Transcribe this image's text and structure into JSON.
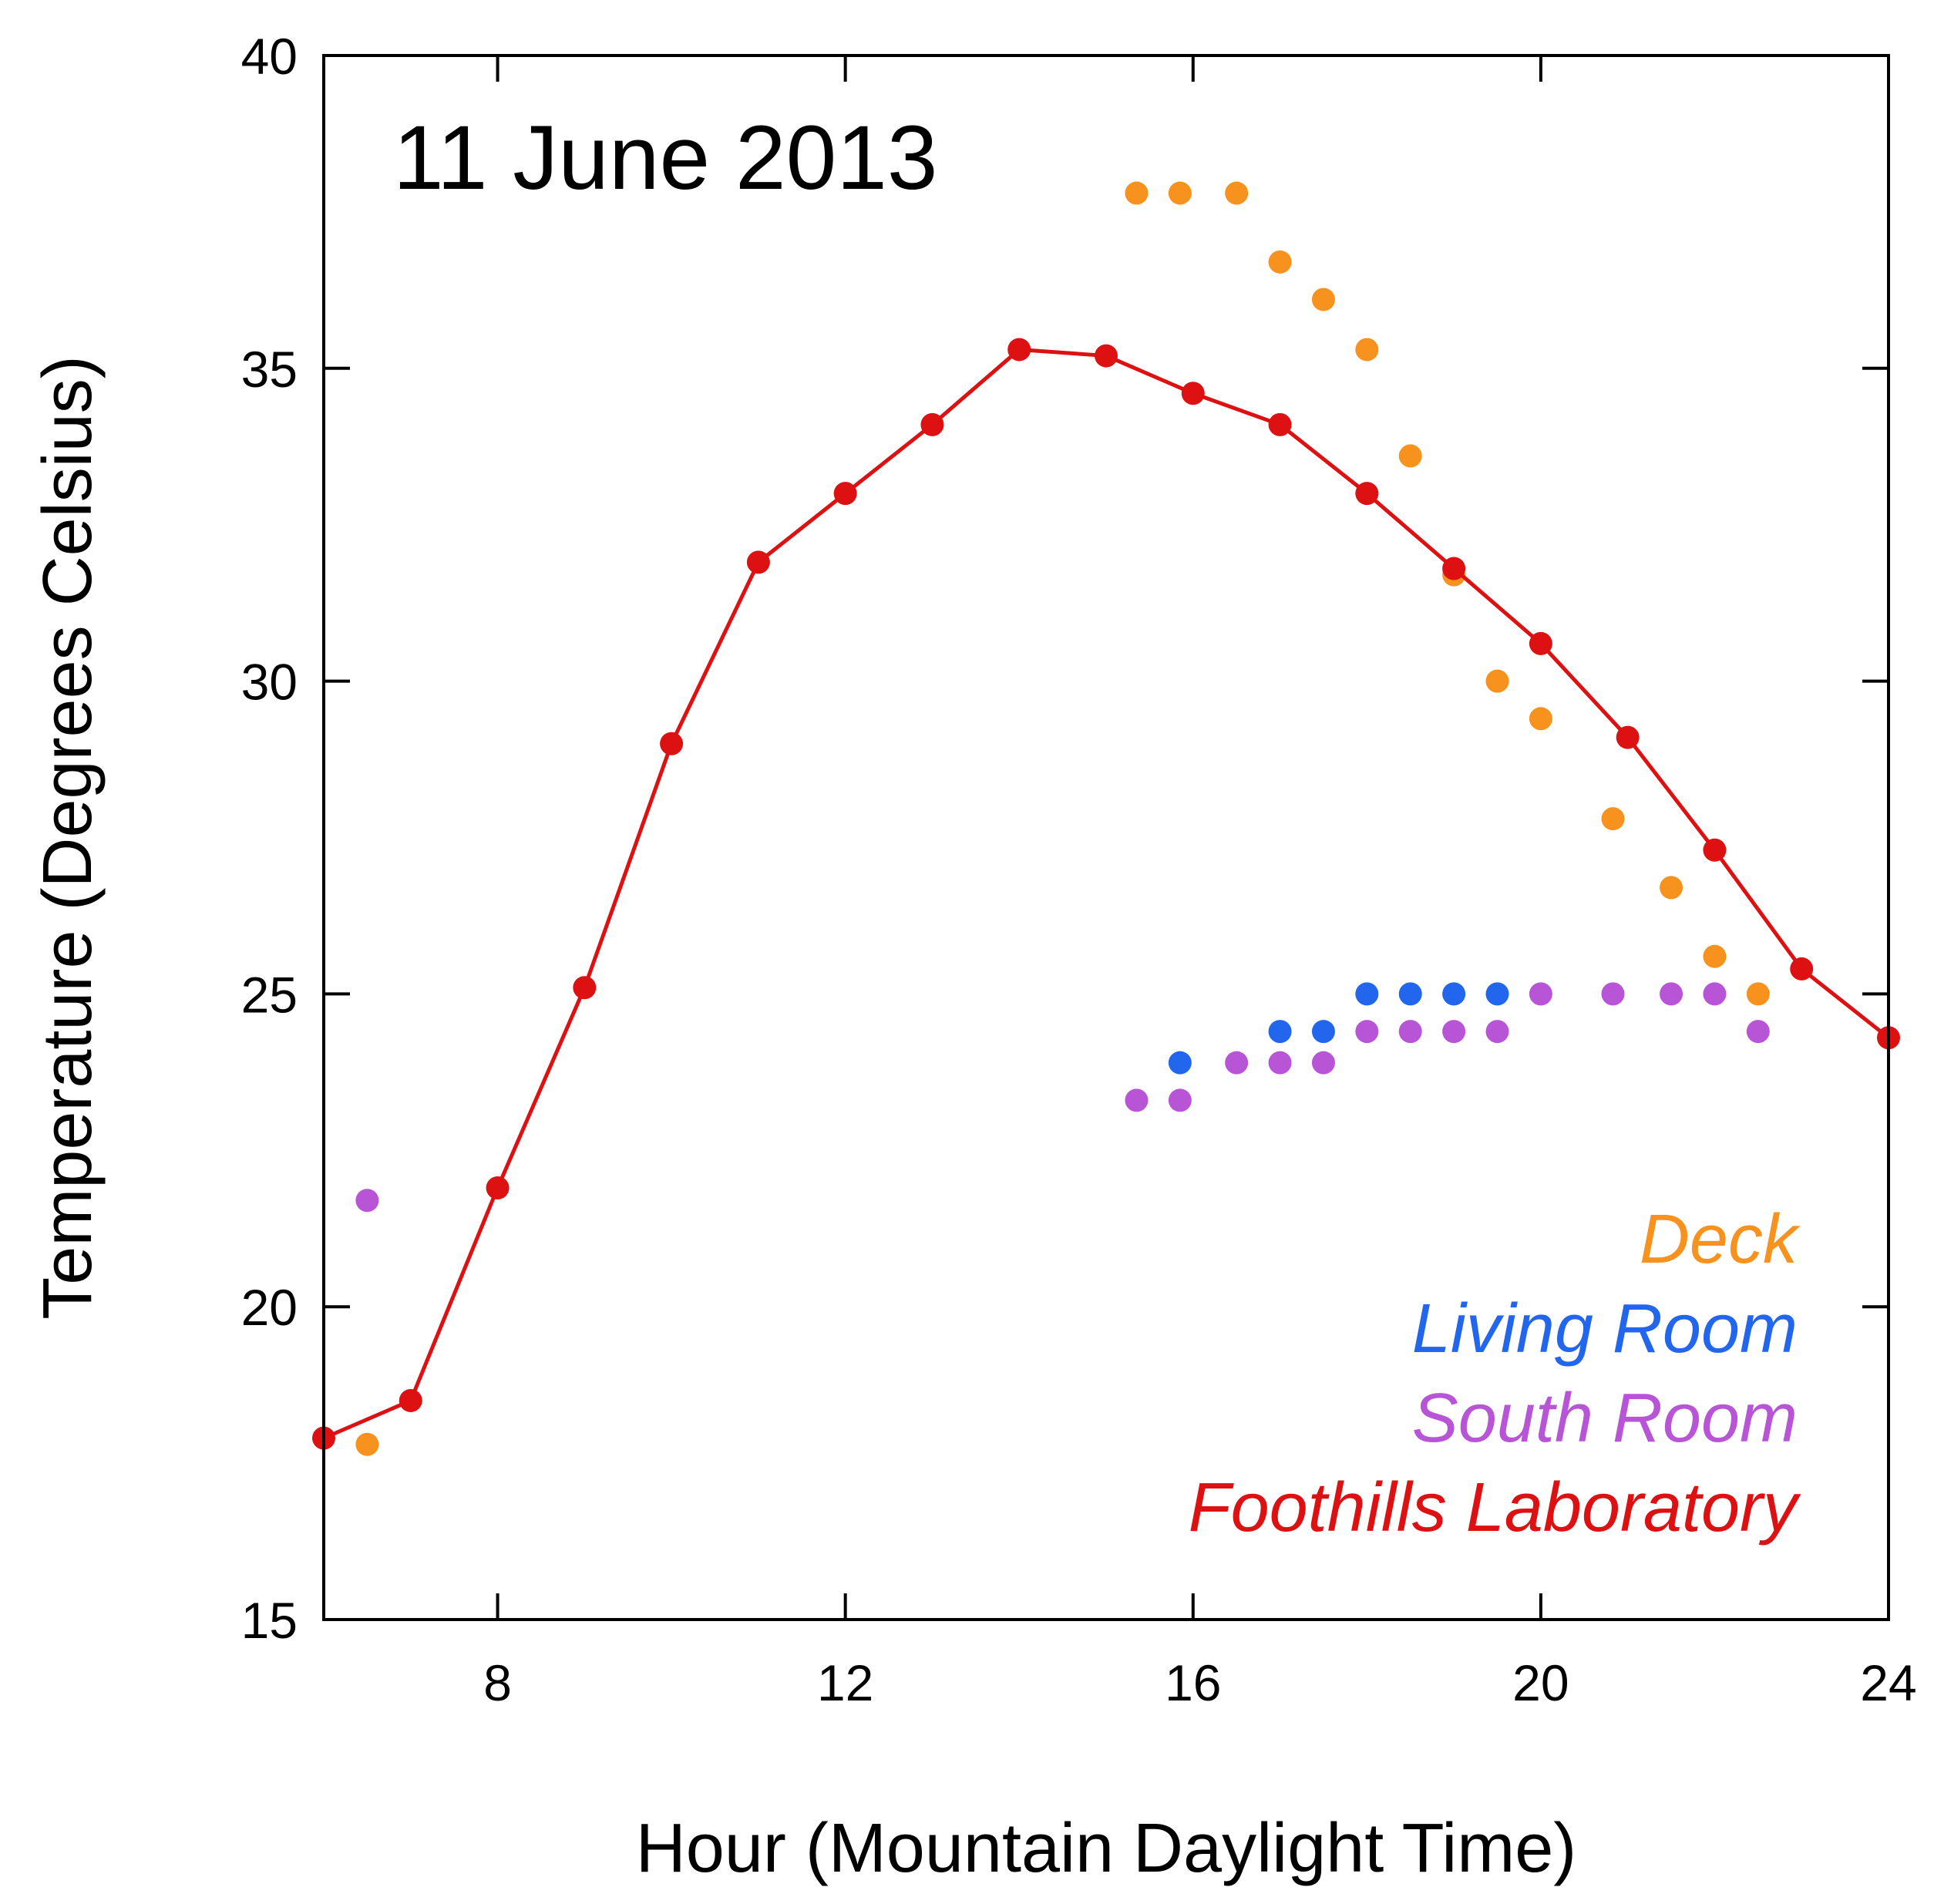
{
  "chart_data": {
    "type": "line",
    "annotation": "11 June 2013",
    "xlabel": "Hour (Mountain Daylight Time)",
    "ylabel": "Temperature (Degrees Celsius)",
    "xlim": [
      6,
      24
    ],
    "ylim": [
      15,
      40
    ],
    "xticks": [
      8,
      12,
      16,
      20,
      24
    ],
    "xtick_labels": [
      "8",
      "12",
      "16",
      "20",
      "24"
    ],
    "yticks": [
      15,
      20,
      25,
      30,
      35,
      40
    ],
    "ytick_labels": [
      "15",
      "20",
      "25",
      "30",
      "35",
      "40"
    ],
    "grid": false,
    "legend_position": "bottom-right",
    "series": [
      {
        "name": "Deck",
        "color": "#F7921E",
        "style": "markers",
        "x": [
          6.5,
          15.35,
          15.85,
          16.5,
          17.0,
          17.5,
          18.0,
          18.5,
          19.0,
          19.5,
          20.0,
          20.83,
          21.5,
          22.0,
          22.5
        ],
        "y": [
          17.8,
          37.8,
          37.8,
          37.8,
          36.7,
          36.1,
          35.3,
          33.6,
          31.7,
          30.0,
          29.4,
          27.8,
          26.7,
          25.6,
          25.0
        ]
      },
      {
        "name": "Living Room",
        "color": "#2266EE",
        "style": "markers",
        "x": [
          15.85,
          17.0,
          17.5,
          18.0,
          18.5,
          19.0,
          19.5
        ],
        "y": [
          23.9,
          24.4,
          24.4,
          25.0,
          25.0,
          25.0,
          25.0
        ]
      },
      {
        "name": "South Room",
        "color": "#B855D6",
        "style": "markers",
        "x": [
          6.5,
          15.35,
          15.85,
          16.5,
          17.0,
          17.5,
          18.0,
          18.5,
          19.0,
          19.5,
          20.0,
          20.83,
          21.5,
          22.0,
          22.5
        ],
        "y": [
          21.7,
          23.3,
          23.3,
          23.9,
          23.9,
          23.9,
          24.4,
          24.4,
          24.4,
          24.4,
          25.0,
          25.0,
          25.0,
          25.0,
          24.4
        ]
      },
      {
        "name": "Foothills Laboratory",
        "color": "#DD1111",
        "style": "line-markers",
        "x": [
          6,
          7,
          8,
          9,
          10,
          11,
          12,
          13,
          14,
          15,
          16,
          17,
          18,
          19,
          20,
          21,
          22,
          23,
          24
        ],
        "y": [
          17.9,
          18.5,
          21.9,
          25.1,
          29.0,
          31.9,
          33.0,
          34.1,
          35.3,
          35.2,
          34.6,
          34.1,
          33.0,
          31.8,
          30.6,
          29.1,
          27.3,
          25.4,
          24.3
        ]
      }
    ]
  }
}
